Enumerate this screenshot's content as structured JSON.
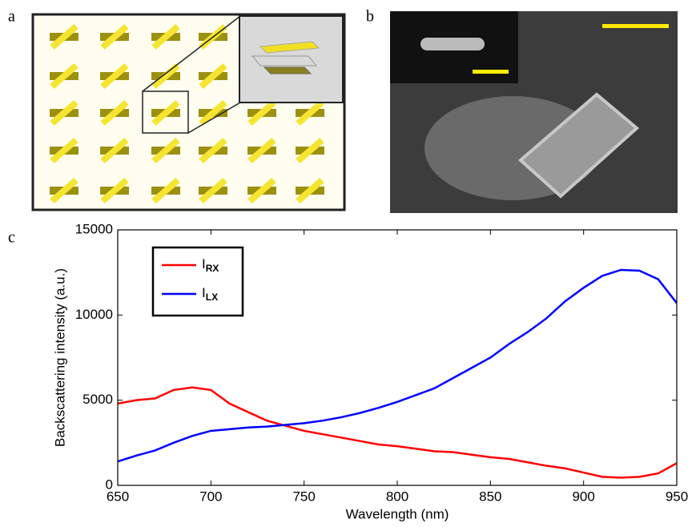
{
  "panel_labels": [
    "a",
    "b",
    "c"
  ],
  "chart_data": {
    "type": "line",
    "x_label": "Wavelength (nm)",
    "y_label": "Backscattering intensity (a.u.)",
    "x": [
      650,
      660,
      670,
      680,
      690,
      700,
      710,
      720,
      730,
      740,
      750,
      760,
      770,
      780,
      790,
      800,
      810,
      820,
      830,
      840,
      850,
      860,
      870,
      880,
      890,
      900,
      910,
      920,
      930,
      940,
      950
    ],
    "series": [
      {
        "name": "IRX",
        "color": "#ff0000",
        "values": [
          4800,
          5000,
          5100,
          5600,
          5750,
          5600,
          4800,
          4300,
          3800,
          3500,
          3200,
          3000,
          2800,
          2600,
          2400,
          2300,
          2150,
          2000,
          1950,
          1800,
          1650,
          1550,
          1350,
          1150,
          1000,
          750,
          500,
          450,
          500,
          700,
          1300
        ]
      },
      {
        "name": "ILX",
        "color": "#0000ff",
        "values": [
          1400,
          1750,
          2050,
          2500,
          2900,
          3200,
          3300,
          3400,
          3450,
          3550,
          3650,
          3800,
          4000,
          4250,
          4550,
          4900,
          5300,
          5700,
          6300,
          6900,
          7500,
          8300,
          9000,
          9800,
          10800,
          11600,
          12300,
          12650,
          12600,
          12100,
          10700
        ]
      }
    ],
    "xlim": [
      650,
      950
    ],
    "xticks": [
      650,
      700,
      750,
      800,
      850,
      900,
      950
    ],
    "ylim": [
      0,
      15000
    ],
    "yticks": [
      0,
      5000,
      10000,
      15000
    ],
    "legend": "upper-left",
    "grid": false
  }
}
